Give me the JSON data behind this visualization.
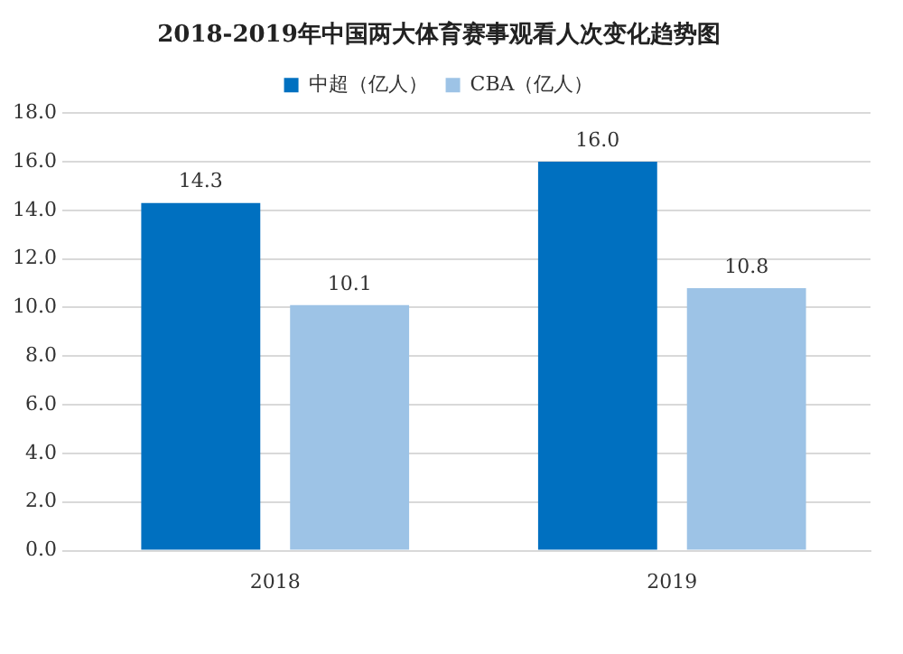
{
  "chart_data": {
    "type": "bar",
    "title": "2018-2019年中国两大体育赛事观看人次变化趋势图",
    "categories": [
      "2018",
      "2019"
    ],
    "series": [
      {
        "name": "中超（亿人）",
        "color": "#0070c0",
        "values": [
          14.3,
          16.0
        ],
        "value_labels": [
          "14.3",
          "16.0"
        ]
      },
      {
        "name": "CBA（亿人）",
        "color": "#9dc3e6",
        "values": [
          10.1,
          10.8
        ],
        "value_labels": [
          "10.1",
          "10.8"
        ]
      }
    ],
    "ylim": [
      0,
      18
    ],
    "yticks": [
      {
        "value": 0,
        "label": "0.0"
      },
      {
        "value": 2,
        "label": "2.0"
      },
      {
        "value": 4,
        "label": "4.0"
      },
      {
        "value": 6,
        "label": "6.0"
      },
      {
        "value": 8,
        "label": "8.0"
      },
      {
        "value": 10,
        "label": "10.0"
      },
      {
        "value": 12,
        "label": "12.0"
      },
      {
        "value": 14,
        "label": "14.0"
      },
      {
        "value": 16,
        "label": "16.0"
      },
      {
        "value": 18,
        "label": "18.0"
      }
    ],
    "grid": "y",
    "legend": "top"
  }
}
